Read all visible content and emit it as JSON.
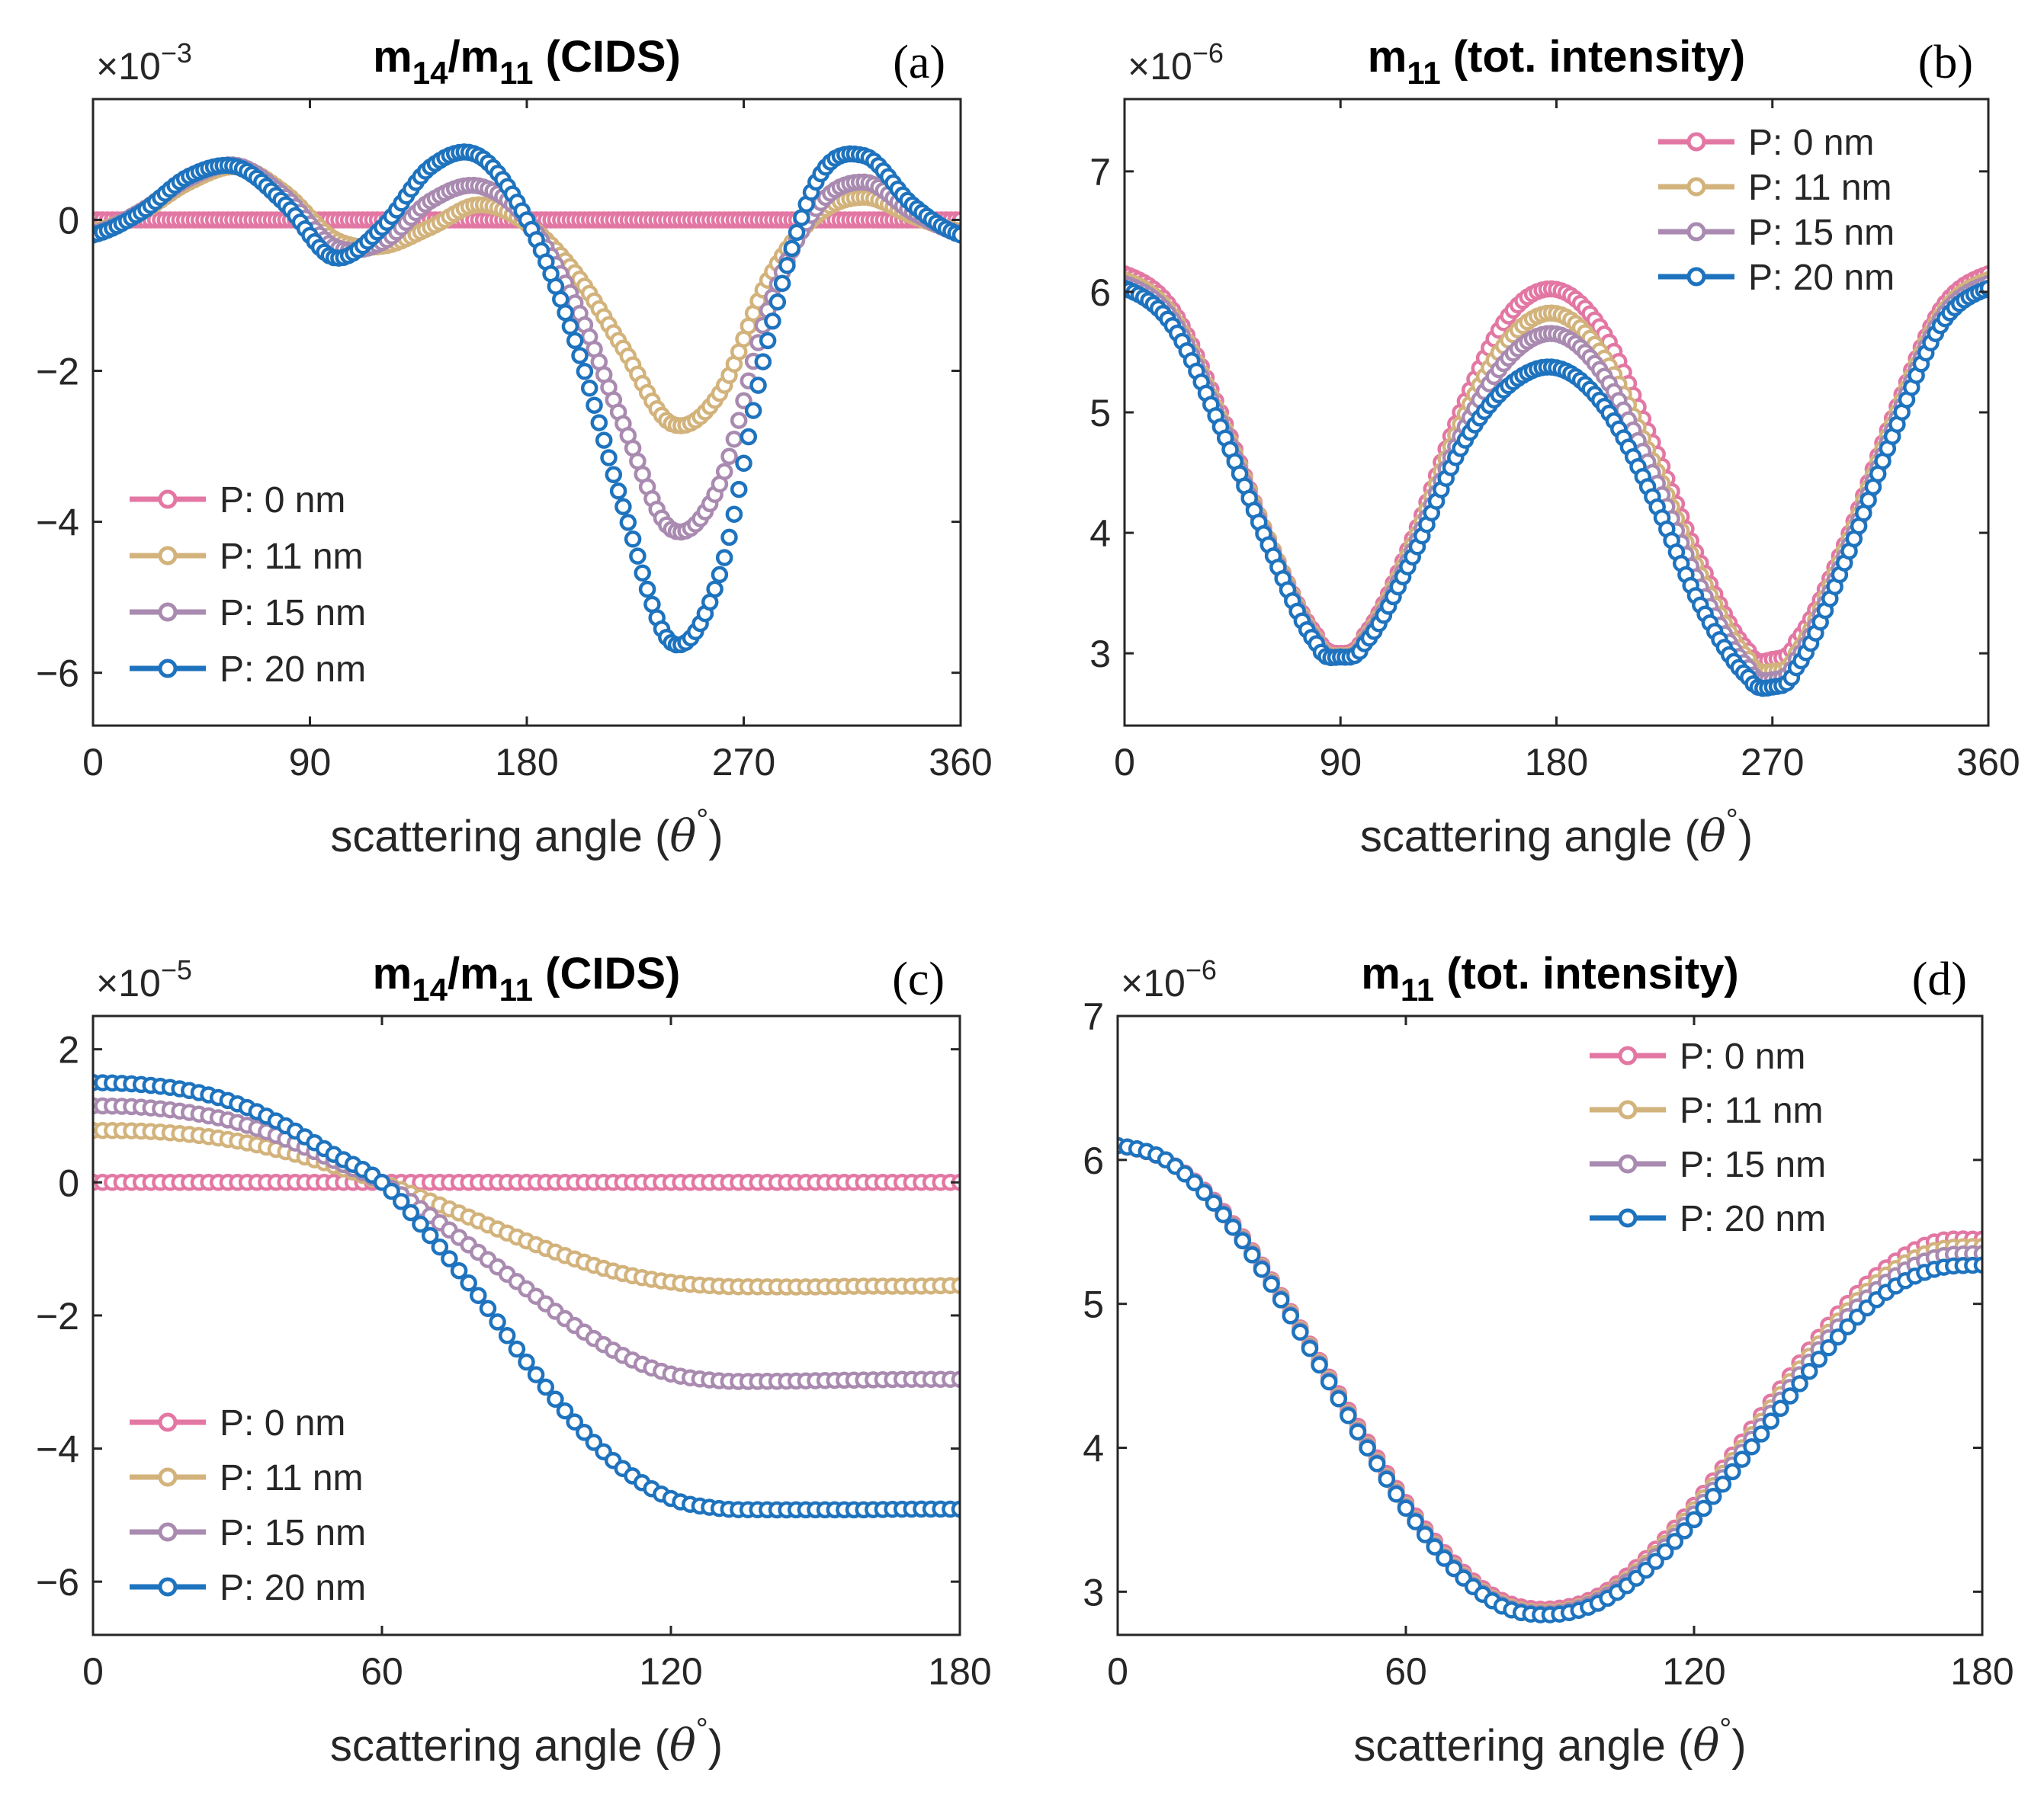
{
  "figure": {
    "series_colors": [
      "#e377a3",
      "#d3b37c",
      "#a98ab0",
      "#1e73be"
    ],
    "series_names": [
      "P: 0 nm",
      "P: 11 nm",
      "P: 15 nm",
      "P: 20 nm"
    ]
  },
  "chart_data": [
    {
      "id": "a",
      "type": "line",
      "panel_label": "(a)",
      "title_main": "m",
      "title_sub1": "14",
      "title_sep": "/m",
      "title_sub2": "11",
      "title_rest": " (CIDS)",
      "xlabel_main": "scattering angle (",
      "xlabel_theta": "θ",
      "xlabel_deg": "°",
      "xlabel_close": ")",
      "exponent_base": "×10",
      "exponent_power": "−3",
      "xlim": [
        0,
        360
      ],
      "ylim": [
        -6.7,
        1.6
      ],
      "xticks": [
        0,
        90,
        180,
        270,
        360
      ],
      "xtick_labels": [
        "0",
        "90",
        "180",
        "270",
        "360"
      ],
      "yticks": [
        -6,
        -4,
        -2,
        0
      ],
      "ytick_labels": [
        "−6",
        "−4",
        "−2",
        "0"
      ],
      "legend_position": "lower-left",
      "x": [
        0,
        20,
        40,
        60,
        80,
        100,
        120,
        140,
        160,
        180,
        200,
        220,
        240,
        260,
        280,
        300,
        320,
        340,
        360
      ],
      "series": [
        {
          "name": "P: 0 nm",
          "values": [
            0,
            0,
            0,
            0,
            0,
            0,
            0,
            0,
            0,
            0,
            0,
            0,
            0,
            0,
            0,
            0,
            0,
            0,
            0
          ]
        },
        {
          "name": "P: 11 nm",
          "values": [
            -0.15,
            0.1,
            0.5,
            0.7,
            0.35,
            -0.25,
            -0.35,
            -0.1,
            0.2,
            -0.05,
            -0.7,
            -1.7,
            -2.7,
            -2.3,
            -0.8,
            0.05,
            0.3,
            0.05,
            -0.15
          ]
        },
        {
          "name": "P: 15 nm",
          "values": [
            -0.18,
            0.12,
            0.55,
            0.72,
            0.3,
            -0.35,
            -0.3,
            0.25,
            0.45,
            0.0,
            -1.1,
            -2.7,
            -4.1,
            -3.5,
            -1.2,
            0.15,
            0.5,
            0.1,
            -0.18
          ]
        },
        {
          "name": "P: 20 nm",
          "values": [
            -0.2,
            0.1,
            0.58,
            0.7,
            0.2,
            -0.5,
            -0.1,
            0.7,
            0.85,
            0.0,
            -1.6,
            -3.8,
            -5.6,
            -4.7,
            -1.6,
            0.5,
            0.85,
            0.2,
            -0.2
          ]
        }
      ]
    },
    {
      "id": "b",
      "type": "line",
      "panel_label": "(b)",
      "title_main": "m",
      "title_sub1": "11",
      "title_sep": "",
      "title_sub2": "",
      "title_rest": " (tot. intensity)",
      "xlabel_main": "scattering angle (",
      "xlabel_theta": "θ",
      "xlabel_deg": "°",
      "xlabel_close": ")",
      "exponent_base": "×10",
      "exponent_power": "−6",
      "xlim": [
        0,
        360
      ],
      "ylim": [
        2.4,
        7.6
      ],
      "xticks": [
        0,
        90,
        180,
        270,
        360
      ],
      "xtick_labels": [
        "0",
        "90",
        "180",
        "270",
        "360"
      ],
      "yticks": [
        3,
        4,
        5,
        6,
        7
      ],
      "ytick_labels": [
        "3",
        "4",
        "5",
        "6",
        "7"
      ],
      "legend_position": "top-right",
      "x": [
        0,
        20,
        40,
        60,
        80,
        90,
        100,
        120,
        140,
        160,
        180,
        200,
        220,
        240,
        260,
        270,
        280,
        300,
        320,
        340,
        360
      ],
      "series": [
        {
          "name": "P: 0 nm",
          "values": [
            6.15,
            5.85,
            5.0,
            3.95,
            3.15,
            3.0,
            3.15,
            3.95,
            5.0,
            5.8,
            6.02,
            5.65,
            4.75,
            3.75,
            3.02,
            2.95,
            3.1,
            3.9,
            4.95,
            5.85,
            6.15
          ]
        },
        {
          "name": "P: 11 nm",
          "values": [
            6.1,
            5.8,
            4.95,
            3.95,
            3.12,
            2.98,
            3.12,
            3.9,
            4.9,
            5.6,
            5.82,
            5.45,
            4.6,
            3.65,
            2.95,
            2.85,
            3.0,
            3.85,
            4.9,
            5.8,
            6.1
          ]
        },
        {
          "name": "P: 15 nm",
          "values": [
            6.07,
            5.77,
            4.92,
            3.92,
            3.1,
            2.97,
            3.1,
            3.85,
            4.8,
            5.45,
            5.65,
            5.3,
            4.5,
            3.55,
            2.88,
            2.78,
            2.95,
            3.8,
            4.85,
            5.77,
            6.07
          ]
        },
        {
          "name": "P: 20 nm",
          "values": [
            6.03,
            5.72,
            4.88,
            3.9,
            3.08,
            2.97,
            3.08,
            3.8,
            4.7,
            5.22,
            5.37,
            5.05,
            4.3,
            3.4,
            2.8,
            2.72,
            2.88,
            3.75,
            4.8,
            5.72,
            6.03
          ]
        }
      ]
    },
    {
      "id": "c",
      "type": "line",
      "panel_label": "(c)",
      "title_main": "m",
      "title_sub1": "14",
      "title_sep": "/m",
      "title_sub2": "11",
      "title_rest": " (CIDS)",
      "xlabel_main": "scattering angle (",
      "xlabel_theta": "θ",
      "xlabel_deg": "°",
      "xlabel_close": ")",
      "exponent_base": "×10",
      "exponent_power": "−5",
      "xlim": [
        0,
        180
      ],
      "ylim": [
        -6.8,
        2.5
      ],
      "xticks": [
        0,
        60,
        120,
        180
      ],
      "xtick_labels": [
        "0",
        "60",
        "120",
        "180"
      ],
      "yticks": [
        -6,
        -4,
        -2,
        0,
        2
      ],
      "ytick_labels": [
        "−6",
        "−4",
        "−2",
        "0",
        "2"
      ],
      "legend_position": "lower-left",
      "x": [
        0,
        10,
        20,
        30,
        40,
        50,
        60,
        70,
        80,
        90,
        100,
        110,
        120,
        130,
        140,
        150,
        160,
        170,
        180
      ],
      "series": [
        {
          "name": "P: 0 nm",
          "values": [
            0,
            0,
            0,
            0,
            0,
            0,
            0,
            0,
            0,
            0,
            0,
            0,
            0,
            0,
            0,
            0,
            0,
            0,
            0
          ]
        },
        {
          "name": "P: 11 nm",
          "values": [
            0.78,
            0.77,
            0.72,
            0.62,
            0.46,
            0.25,
            0.0,
            -0.28,
            -0.58,
            -0.88,
            -1.15,
            -1.37,
            -1.5,
            -1.56,
            -1.57,
            -1.57,
            -1.56,
            -1.56,
            -1.55
          ]
        },
        {
          "name": "P: 15 nm",
          "values": [
            1.15,
            1.13,
            1.05,
            0.9,
            0.65,
            0.33,
            0.0,
            -0.5,
            -1.05,
            -1.6,
            -2.15,
            -2.6,
            -2.88,
            -2.98,
            -2.99,
            -2.98,
            -2.97,
            -2.96,
            -2.96
          ]
        },
        {
          "name": "P: 20 nm",
          "values": [
            1.5,
            1.47,
            1.38,
            1.18,
            0.85,
            0.42,
            0.0,
            -0.8,
            -1.7,
            -2.7,
            -3.6,
            -4.3,
            -4.75,
            -4.9,
            -4.92,
            -4.92,
            -4.92,
            -4.91,
            -4.91
          ]
        }
      ]
    },
    {
      "id": "d",
      "type": "line",
      "panel_label": "(d)",
      "title_main": "m",
      "title_sub1": "11",
      "title_sep": "",
      "title_sub2": "",
      "title_rest": " (tot. intensity)",
      "xlabel_main": "scattering angle (",
      "xlabel_theta": "θ",
      "xlabel_deg": "°",
      "xlabel_close": ")",
      "exponent_base": "×10",
      "exponent_power": "−6",
      "xlim": [
        0,
        180
      ],
      "ylim": [
        2.7,
        7.0
      ],
      "xticks": [
        0,
        60,
        120,
        180
      ],
      "xtick_labels": [
        "0",
        "60",
        "120",
        "180"
      ],
      "yticks": [
        3,
        4,
        5,
        6,
        7
      ],
      "ytick_labels": [
        "3",
        "4",
        "5",
        "6",
        "7"
      ],
      "legend_position": "top-right",
      "x": [
        0,
        10,
        20,
        30,
        40,
        50,
        60,
        70,
        80,
        90,
        100,
        110,
        120,
        130,
        140,
        150,
        160,
        170,
        180
      ],
      "series": [
        {
          "name": "P: 0 nm",
          "values": [
            6.1,
            6.0,
            5.72,
            5.27,
            4.72,
            4.15,
            3.62,
            3.2,
            2.94,
            2.88,
            2.97,
            3.23,
            3.6,
            4.04,
            4.5,
            4.93,
            5.25,
            5.43,
            5.45
          ]
        },
        {
          "name": "P: 11 nm",
          "values": [
            6.1,
            6.0,
            5.71,
            5.26,
            4.71,
            4.13,
            3.6,
            3.18,
            2.92,
            2.86,
            2.95,
            3.2,
            3.57,
            4.0,
            4.46,
            4.88,
            5.2,
            5.37,
            5.4
          ]
        },
        {
          "name": "P: 15 nm",
          "values": [
            6.1,
            6.0,
            5.71,
            5.25,
            4.7,
            4.12,
            3.59,
            3.17,
            2.91,
            2.85,
            2.94,
            3.18,
            3.54,
            3.97,
            4.42,
            4.84,
            5.15,
            5.32,
            5.35
          ]
        },
        {
          "name": "P: 20 nm",
          "values": [
            6.1,
            6.0,
            5.7,
            5.24,
            4.69,
            4.11,
            3.58,
            3.16,
            2.9,
            2.84,
            2.92,
            3.15,
            3.5,
            3.92,
            4.36,
            4.77,
            5.08,
            5.24,
            5.27
          ]
        }
      ]
    }
  ]
}
